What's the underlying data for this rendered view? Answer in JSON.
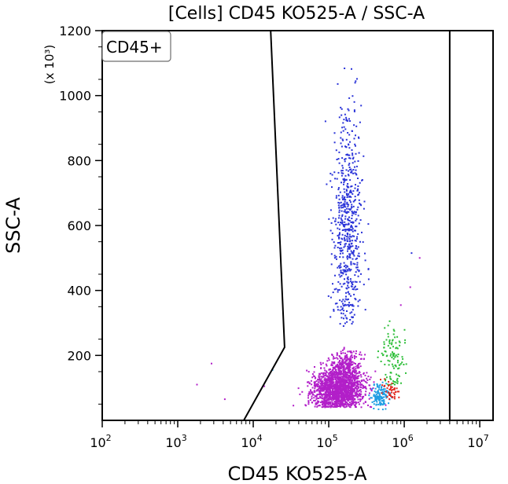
{
  "chart_data": {
    "type": "scatter",
    "title": "[Cells] CD45 KO525-A / SSC-A",
    "xlabel": "CD45 KO525-A",
    "ylabel": "SSC-A",
    "y_multiplier_label": "(x 10³)",
    "x_scale": "log",
    "xlim": [
      100,
      15000000
    ],
    "ylim": [
      0,
      1200
    ],
    "x_ticks": [
      {
        "value": 100,
        "base": "10",
        "exp": "2"
      },
      {
        "value": 1000,
        "base": "10",
        "exp": "3"
      },
      {
        "value": 10000,
        "base": "10",
        "exp": "4"
      },
      {
        "value": 100000,
        "base": "10",
        "exp": "5"
      },
      {
        "value": 1000000,
        "base": "10",
        "exp": "6"
      },
      {
        "value": 10000000,
        "base": "10",
        "exp": "7"
      }
    ],
    "y_ticks": [
      {
        "value": 200,
        "label": "200"
      },
      {
        "value": 400,
        "label": "400"
      },
      {
        "value": 600,
        "label": "600"
      },
      {
        "value": 800,
        "label": "800"
      },
      {
        "value": 1000,
        "label": "1000"
      },
      {
        "value": 1200,
        "label": "1200"
      }
    ],
    "gate": {
      "label": "CD45+",
      "polygon": [
        [
          7500,
          0
        ],
        [
          26000,
          225
        ],
        [
          17000,
          1200
        ]
      ],
      "right_boundary_x": 4000000
    },
    "populations": [
      {
        "color": "#b21fc9",
        "count": 1600,
        "x_log_center": 5.12,
        "x_log_sd": 0.17,
        "y_center": 95,
        "y_sd": 30,
        "y_min": 40,
        "y_max": 200
      },
      {
        "color": "#b21fc9",
        "count": 320,
        "x_log_center": 5.22,
        "x_log_sd": 0.1,
        "y_center": 165,
        "y_sd": 25,
        "y_min": 100,
        "y_max": 230
      },
      {
        "color": "#2a33d8",
        "count": 620,
        "x_log_center": 5.25,
        "x_log_sd": 0.1,
        "y_center": 600,
        "y_sd": 170,
        "y_min": 290,
        "y_max": 1200
      },
      {
        "color": "#1e9de3",
        "count": 130,
        "x_log_center": 5.68,
        "x_log_sd": 0.06,
        "y_center": 75,
        "y_sd": 20,
        "y_min": 30,
        "y_max": 130
      },
      {
        "color": "#2fbf3a",
        "count": 110,
        "x_log_center": 5.86,
        "x_log_sd": 0.08,
        "y_center": 190,
        "y_sd": 50,
        "y_min": 110,
        "y_max": 330
      },
      {
        "color": "#e0281f",
        "count": 45,
        "x_log_center": 5.84,
        "x_log_sd": 0.06,
        "y_center": 95,
        "y_sd": 15,
        "y_min": 60,
        "y_max": 140
      }
    ],
    "outliers": [
      {
        "x": 2800,
        "y": 175,
        "color": "#b21fc9"
      },
      {
        "x": 4200,
        "y": 65,
        "color": "#b21fc9"
      },
      {
        "x": 1800,
        "y": 110,
        "color": "#b21fc9"
      },
      {
        "x": 14000,
        "y": 105,
        "color": "#b21fc9"
      },
      {
        "x": 18000,
        "y": 155,
        "color": "#1e9de3"
      },
      {
        "x": 1600000,
        "y": 500,
        "color": "#b21fc9"
      },
      {
        "x": 1200000,
        "y": 410,
        "color": "#b21fc9"
      },
      {
        "x": 900000,
        "y": 355,
        "color": "#b21fc9"
      },
      {
        "x": 1250000,
        "y": 515,
        "color": "#2a33d8"
      }
    ],
    "grid": false,
    "legend": "none"
  }
}
